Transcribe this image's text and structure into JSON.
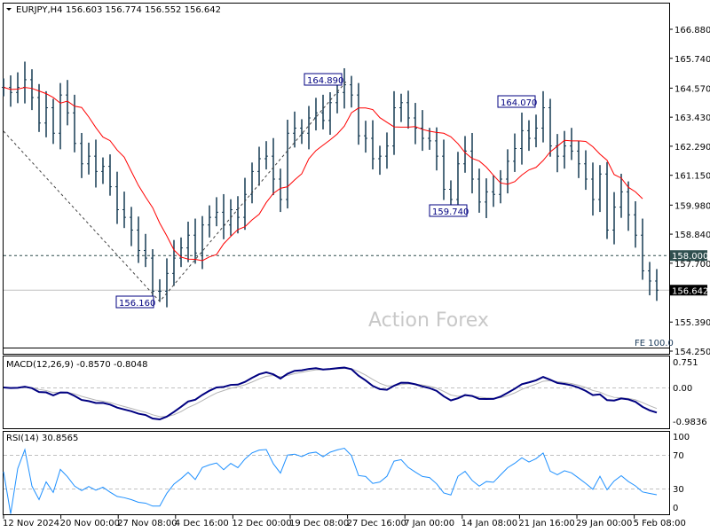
{
  "header": {
    "symbol": "EURJPY,H4",
    "ohlc": "156.603 156.774 156.552 156.642"
  },
  "watermark": "Action Forex",
  "fe_label": "FE 100.0",
  "colors": {
    "bars": "#163a52",
    "ma": "#ff0000",
    "macd": "#000080",
    "signal": "#b4b4b4",
    "rsi": "#1e90ff",
    "grid_dash": "#c0c0c0"
  },
  "chart_data": [
    {
      "type": "bar",
      "title": "EURJPY,H4",
      "ylim": [
        154.25,
        166.88
      ],
      "y_ticks": [
        "166.880",
        "165.740",
        "164.570",
        "163.430",
        "162.290",
        "161.150",
        "159.980",
        "158.840",
        "157.700",
        "155.390",
        "154.250"
      ],
      "x_ticks": [
        "12 Nov 2024",
        "20 Nov 00:00",
        "27 Nov 08:00",
        "4 Dec 16:00",
        "12 Dec 00:00",
        "19 Dec 08:00",
        "27 Dec 16:00",
        "7 Jan 00:00",
        "14 Jan 08:00",
        "21 Jan 16:00",
        "29 Jan 00:00",
        "5 Feb 08:00"
      ],
      "closes": [
        164.6,
        164.4,
        164.6,
        164.9,
        164.2,
        163.2,
        163.8,
        162.8,
        164.3,
        163.6,
        162.4,
        161.6,
        161.9,
        161.3,
        161.5,
        160.7,
        159.8,
        159.5,
        159.0,
        158.2,
        157.9,
        156.6,
        156.6,
        157.3,
        157.9,
        158.3,
        158.8,
        158.1,
        159.2,
        159.5,
        159.7,
        159.2,
        159.8,
        159.5,
        160.4,
        161.3,
        161.8,
        161.9,
        161.0,
        160.2,
        162.8,
        163.0,
        162.8,
        163.4,
        163.6,
        163.3,
        164.0,
        164.4,
        164.7,
        164.3,
        162.7,
        162.6,
        161.8,
        161.9,
        162.3,
        163.8,
        164.0,
        163.4,
        163.0,
        162.6,
        162.5,
        161.9,
        160.6,
        160.2,
        161.6,
        162.1,
        161.0,
        160.1,
        160.5,
        160.4,
        161.0,
        161.7,
        162.2,
        162.9,
        162.6,
        163.0,
        163.8,
        162.3,
        161.9,
        162.3,
        162.1,
        161.6,
        161.0,
        160.2,
        161.2,
        159.0,
        159.9,
        160.5,
        159.6,
        158.8,
        157.4,
        157.0,
        156.642
      ],
      "levels": {
        "dashed": "158.000",
        "current": "156.642"
      },
      "annotations": [
        "164.890",
        "156.160",
        "159.740",
        "164.070"
      ]
    },
    {
      "type": "line",
      "title": "MACD(12,26,9) -0.8570 -0.8048",
      "y_ticks": [
        "0.751",
        "0.00",
        "-0.9836"
      ]
    },
    {
      "type": "line",
      "title": "RSI(14) 30.8565",
      "y_ticks": [
        "100",
        "70",
        "30",
        "0"
      ],
      "levels": [
        70,
        30
      ]
    }
  ]
}
